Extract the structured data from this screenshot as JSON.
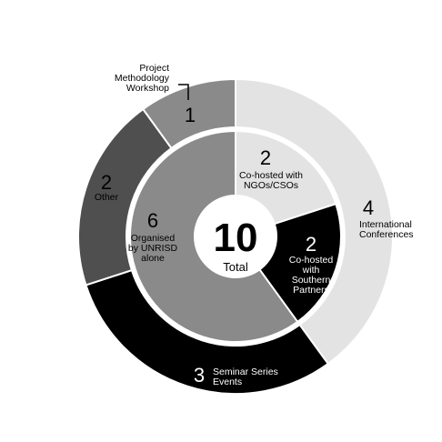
{
  "chart_data": {
    "type": "pie",
    "center": {
      "value": "10",
      "label": "Total"
    },
    "inner": [
      {
        "value": "2",
        "label": [
          "Co-hosted with",
          "NGOs/CSOs"
        ],
        "count": 2,
        "color": "#e3e3e3",
        "text": "#000000"
      },
      {
        "value": "2",
        "label": [
          "Co-hosted",
          "with",
          "Southern",
          "Partners"
        ],
        "count": 2,
        "color": "#000000",
        "text": "#ffffff"
      },
      {
        "value": "6",
        "label": [
          "Organised",
          "by UNRISD",
          "alone"
        ],
        "count": 6,
        "color": "#8a8a8a",
        "text": "#000000"
      }
    ],
    "outer": [
      {
        "value": "4",
        "label": [
          "International",
          "Conferences"
        ],
        "count": 4,
        "color": "#e3e3e3"
      },
      {
        "value": "3",
        "label": [
          "Seminar Series",
          "Events"
        ],
        "count": 3,
        "color": "#000000"
      },
      {
        "value": "2",
        "label": [
          "Other"
        ],
        "count": 2,
        "color": "#4f4f4f"
      },
      {
        "value": "1",
        "label": [
          "Project",
          "Methodology",
          "Workshop"
        ],
        "count": 1,
        "color": "#8a8a8a"
      }
    ]
  }
}
